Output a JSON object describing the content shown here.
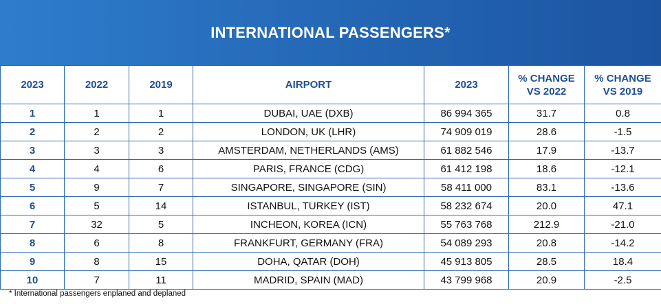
{
  "title": "INTERNATIONAL PASSENGERS*",
  "columns": [
    "2023",
    "2022",
    "2019",
    "AIRPORT",
    "2023",
    "% CHANGE\nVS 2022",
    "% CHANGE\nVS 2019"
  ],
  "rows": [
    [
      "1",
      "1",
      "1",
      "DUBAI, UAE (DXB)",
      "86 994 365",
      "31.7",
      "0.8"
    ],
    [
      "2",
      "2",
      "2",
      "LONDON, UK (LHR)",
      "74 909 019",
      "28.6",
      "-1.5"
    ],
    [
      "3",
      "3",
      "3",
      "AMSTERDAM, NETHERLANDS (AMS)",
      "61 882 546",
      "17.9",
      "-13.7"
    ],
    [
      "4",
      "4",
      "6",
      "PARIS, FRANCE (CDG)",
      "61 412 198",
      "18.6",
      "-12.1"
    ],
    [
      "5",
      "9",
      "7",
      "SINGAPORE, SINGAPORE (SIN)",
      "58 411 000",
      "83.1",
      "-13.6"
    ],
    [
      "6",
      "5",
      "14",
      "ISTANBUL, TURKEY (IST)",
      "58 232 674",
      "20.0",
      "47.1"
    ],
    [
      "7",
      "32",
      "5",
      "INCHEON, KOREA (ICN)",
      "55 763 768",
      "212.9",
      "-21.0"
    ],
    [
      "8",
      "6",
      "8",
      "FRANKFURT, GERMANY (FRA)",
      "54 089 293",
      "20.8",
      "-14.2"
    ],
    [
      "9",
      "8",
      "15",
      "DOHA, QATAR (DOH)",
      "45 913 805",
      "28.5",
      "18.4"
    ],
    [
      "10",
      "7",
      "11",
      "MADRID, SPAIN (MAD)",
      "43 799 968",
      "20.9",
      "-2.5"
    ]
  ],
  "footnote": "* International passengers enplaned and deplaned",
  "colors": {
    "header_bg": "#2468b6",
    "header_text": "#ffffff",
    "column_header_text": "#1e4f96",
    "grid_lines": "#2c69b1",
    "body_text": "#111111"
  }
}
